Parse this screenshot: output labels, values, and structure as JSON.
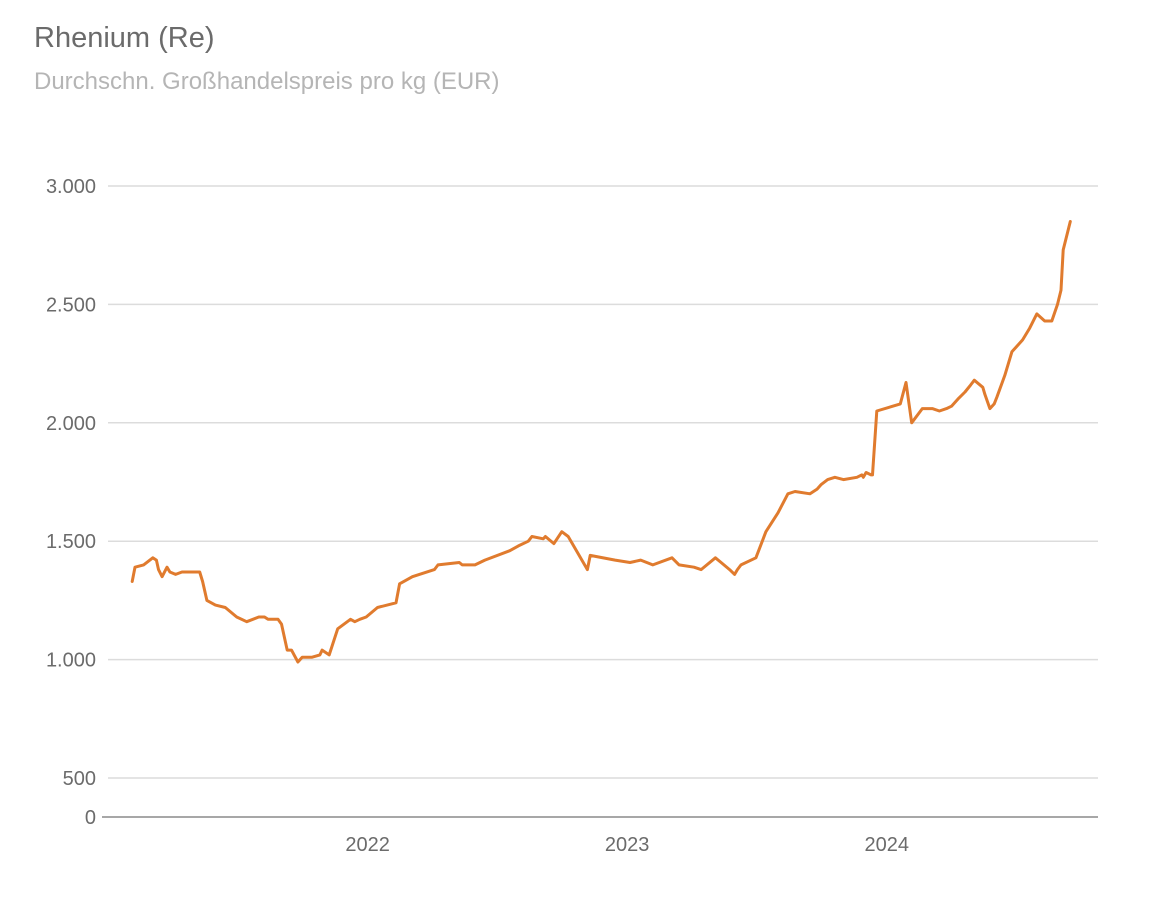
{
  "chart_data": {
    "type": "line",
    "title": "Rhenium (Re)",
    "subtitle": "Durchschn. Großhandelspreis pro kg (EUR)",
    "xlabel": "",
    "ylabel": "",
    "ylim": [
      0,
      3000
    ],
    "y_ticks": [
      {
        "value": 0,
        "label": "0"
      },
      {
        "value": 500,
        "label": "500"
      },
      {
        "value": 1000,
        "label": "1.000"
      },
      {
        "value": 1500,
        "label": "1.500"
      },
      {
        "value": 2000,
        "label": "2.000"
      },
      {
        "value": 2500,
        "label": "2.500"
      },
      {
        "value": 3000,
        "label": "3.000"
      }
    ],
    "x_ticks": [
      {
        "value": "2022-01-01",
        "label": "2022"
      },
      {
        "value": "2023-01-01",
        "label": "2023"
      },
      {
        "value": "2024-01-01",
        "label": "2024"
      }
    ],
    "xlim": [
      "2021-01-01",
      "2024-10-24"
    ],
    "grid": true,
    "line_color": "#e07b2e",
    "series": [
      {
        "x": [
          "2021-02-04",
          "2021-02-08",
          "2021-02-20",
          "2021-03-05",
          "2021-03-10",
          "2021-03-13",
          "2021-03-18",
          "2021-03-25",
          "2021-03-29",
          "2021-04-06",
          "2021-04-15",
          "2021-05-10",
          "2021-05-14",
          "2021-05-20",
          "2021-06-01",
          "2021-06-15",
          "2021-07-01",
          "2021-07-15",
          "2021-08-01",
          "2021-08-09",
          "2021-08-14",
          "2021-08-28",
          "2021-09-02",
          "2021-09-10",
          "2021-09-16",
          "2021-09-25",
          "2021-10-01",
          "2021-10-15",
          "2021-10-26",
          "2021-10-29",
          "2021-11-08",
          "2021-11-20",
          "2021-12-08",
          "2021-12-14",
          "2021-12-21",
          "2021-12-30",
          "2022-01-15",
          "2022-02-10",
          "2022-02-15",
          "2022-03-05",
          "2022-04-05",
          "2022-04-10",
          "2022-05-10",
          "2022-05-14",
          "2022-06-01",
          "2022-06-15",
          "2022-07-20",
          "2022-08-01",
          "2022-08-15",
          "2022-08-20",
          "2022-09-05",
          "2022-09-08",
          "2022-09-20",
          "2022-10-01",
          "2022-10-10",
          "2022-11-06",
          "2022-11-10",
          "2022-12-15",
          "2023-01-05",
          "2023-01-20",
          "2023-02-06",
          "2023-03-05",
          "2023-03-15",
          "2023-04-05",
          "2023-04-15",
          "2023-05-05",
          "2023-05-13",
          "2023-05-25",
          "2023-06-01",
          "2023-06-05",
          "2023-06-10",
          "2023-07-01",
          "2023-07-15",
          "2023-08-01",
          "2023-08-15",
          "2023-08-25",
          "2023-09-15",
          "2023-09-25",
          "2023-10-01",
          "2023-10-10",
          "2023-10-20",
          "2023-11-01",
          "2023-11-20",
          "2023-11-27",
          "2023-11-29",
          "2023-12-03",
          "2023-12-10",
          "2023-12-12",
          "2023-12-18",
          "2024-01-20",
          "2024-01-28",
          "2024-02-05",
          "2024-02-20",
          "2024-03-05",
          "2024-03-15",
          "2024-03-25",
          "2024-04-01",
          "2024-04-10",
          "2024-04-20",
          "2024-04-28",
          "2024-05-03",
          "2024-05-15",
          "2024-05-18",
          "2024-05-25",
          "2024-05-31",
          "2024-06-04",
          "2024-06-15",
          "2024-06-25",
          "2024-07-10",
          "2024-07-20",
          "2024-07-30",
          "2024-08-10",
          "2024-08-20",
          "2024-08-28",
          "2024-09-02",
          "2024-09-05",
          "2024-09-15"
        ],
        "values": [
          1330,
          1390,
          1400,
          1430,
          1420,
          1380,
          1350,
          1390,
          1370,
          1360,
          1370,
          1370,
          1330,
          1250,
          1230,
          1220,
          1180,
          1160,
          1180,
          1180,
          1170,
          1170,
          1150,
          1040,
          1040,
          990,
          1010,
          1010,
          1020,
          1040,
          1020,
          1130,
          1170,
          1160,
          1170,
          1180,
          1220,
          1240,
          1320,
          1350,
          1380,
          1400,
          1410,
          1400,
          1400,
          1420,
          1460,
          1480,
          1500,
          1520,
          1510,
          1520,
          1490,
          1540,
          1520,
          1380,
          1440,
          1420,
          1410,
          1420,
          1400,
          1430,
          1400,
          1390,
          1380,
          1430,
          1410,
          1380,
          1360,
          1380,
          1400,
          1430,
          1540,
          1620,
          1700,
          1710,
          1700,
          1720,
          1740,
          1760,
          1770,
          1760,
          1770,
          1780,
          1770,
          1790,
          1780,
          1780,
          2050,
          2080,
          2170,
          2000,
          2060,
          2060,
          2050,
          2060,
          2070,
          2100,
          2130,
          2160,
          2180,
          2150,
          2120,
          2060,
          2080,
          2110,
          2200,
          2300,
          2350,
          2400,
          2460,
          2430,
          2430,
          2500,
          2560,
          2730,
          2850
        ]
      }
    ]
  }
}
